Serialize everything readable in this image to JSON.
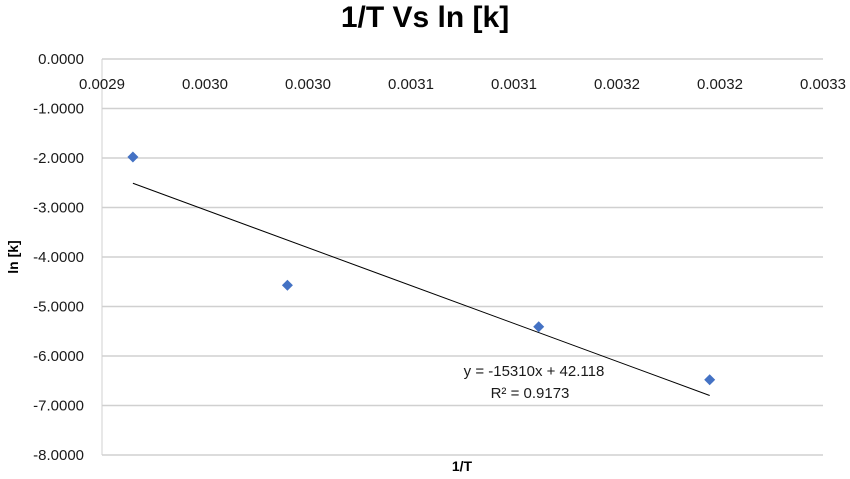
{
  "chart_data": {
    "type": "scatter",
    "title": "1/T Vs ln [k]",
    "xlabel": "1/T",
    "ylabel": "ln [k]",
    "xlim": [
      0.0029,
      0.00325
    ],
    "ylim": [
      -8,
      0
    ],
    "x_tick_values": [
      0.0029,
      0.00295,
      0.003,
      0.00305,
      0.0031,
      0.00315,
      0.0032,
      0.00325
    ],
    "x_tick_labels": [
      "0.0029",
      "0.0030",
      "0.0030",
      "0.0031",
      "0.0031",
      "0.0032",
      "0.0032",
      "0.0033"
    ],
    "y_tick_values": [
      0,
      -1,
      -2,
      -3,
      -4,
      -5,
      -6,
      -7,
      -8
    ],
    "y_tick_labels": [
      "0.0000",
      "-1.0000",
      "-2.0000",
      "-3.0000",
      "-4.0000",
      "-5.0000",
      "-6.0000",
      "-7.0000",
      "-8.0000"
    ],
    "grid": "horizontal",
    "x_axis_position": "top",
    "series": [
      {
        "name": "ln [k]",
        "color": "#4472C4",
        "marker": "diamond",
        "points": [
          {
            "x": 0.002915,
            "y": -1.98
          },
          {
            "x": 0.00299,
            "y": -4.57
          },
          {
            "x": 0.003112,
            "y": -5.41
          },
          {
            "x": 0.003195,
            "y": -6.48
          }
        ]
      }
    ],
    "trendline": {
      "type": "linear",
      "slope": -15310,
      "intercept": 42.118,
      "x_range": [
        0.002915,
        0.003195
      ],
      "color": "#000000",
      "equation_label": "y = -15310x + 42.118",
      "r2_label": "R² = 0.9173"
    }
  }
}
